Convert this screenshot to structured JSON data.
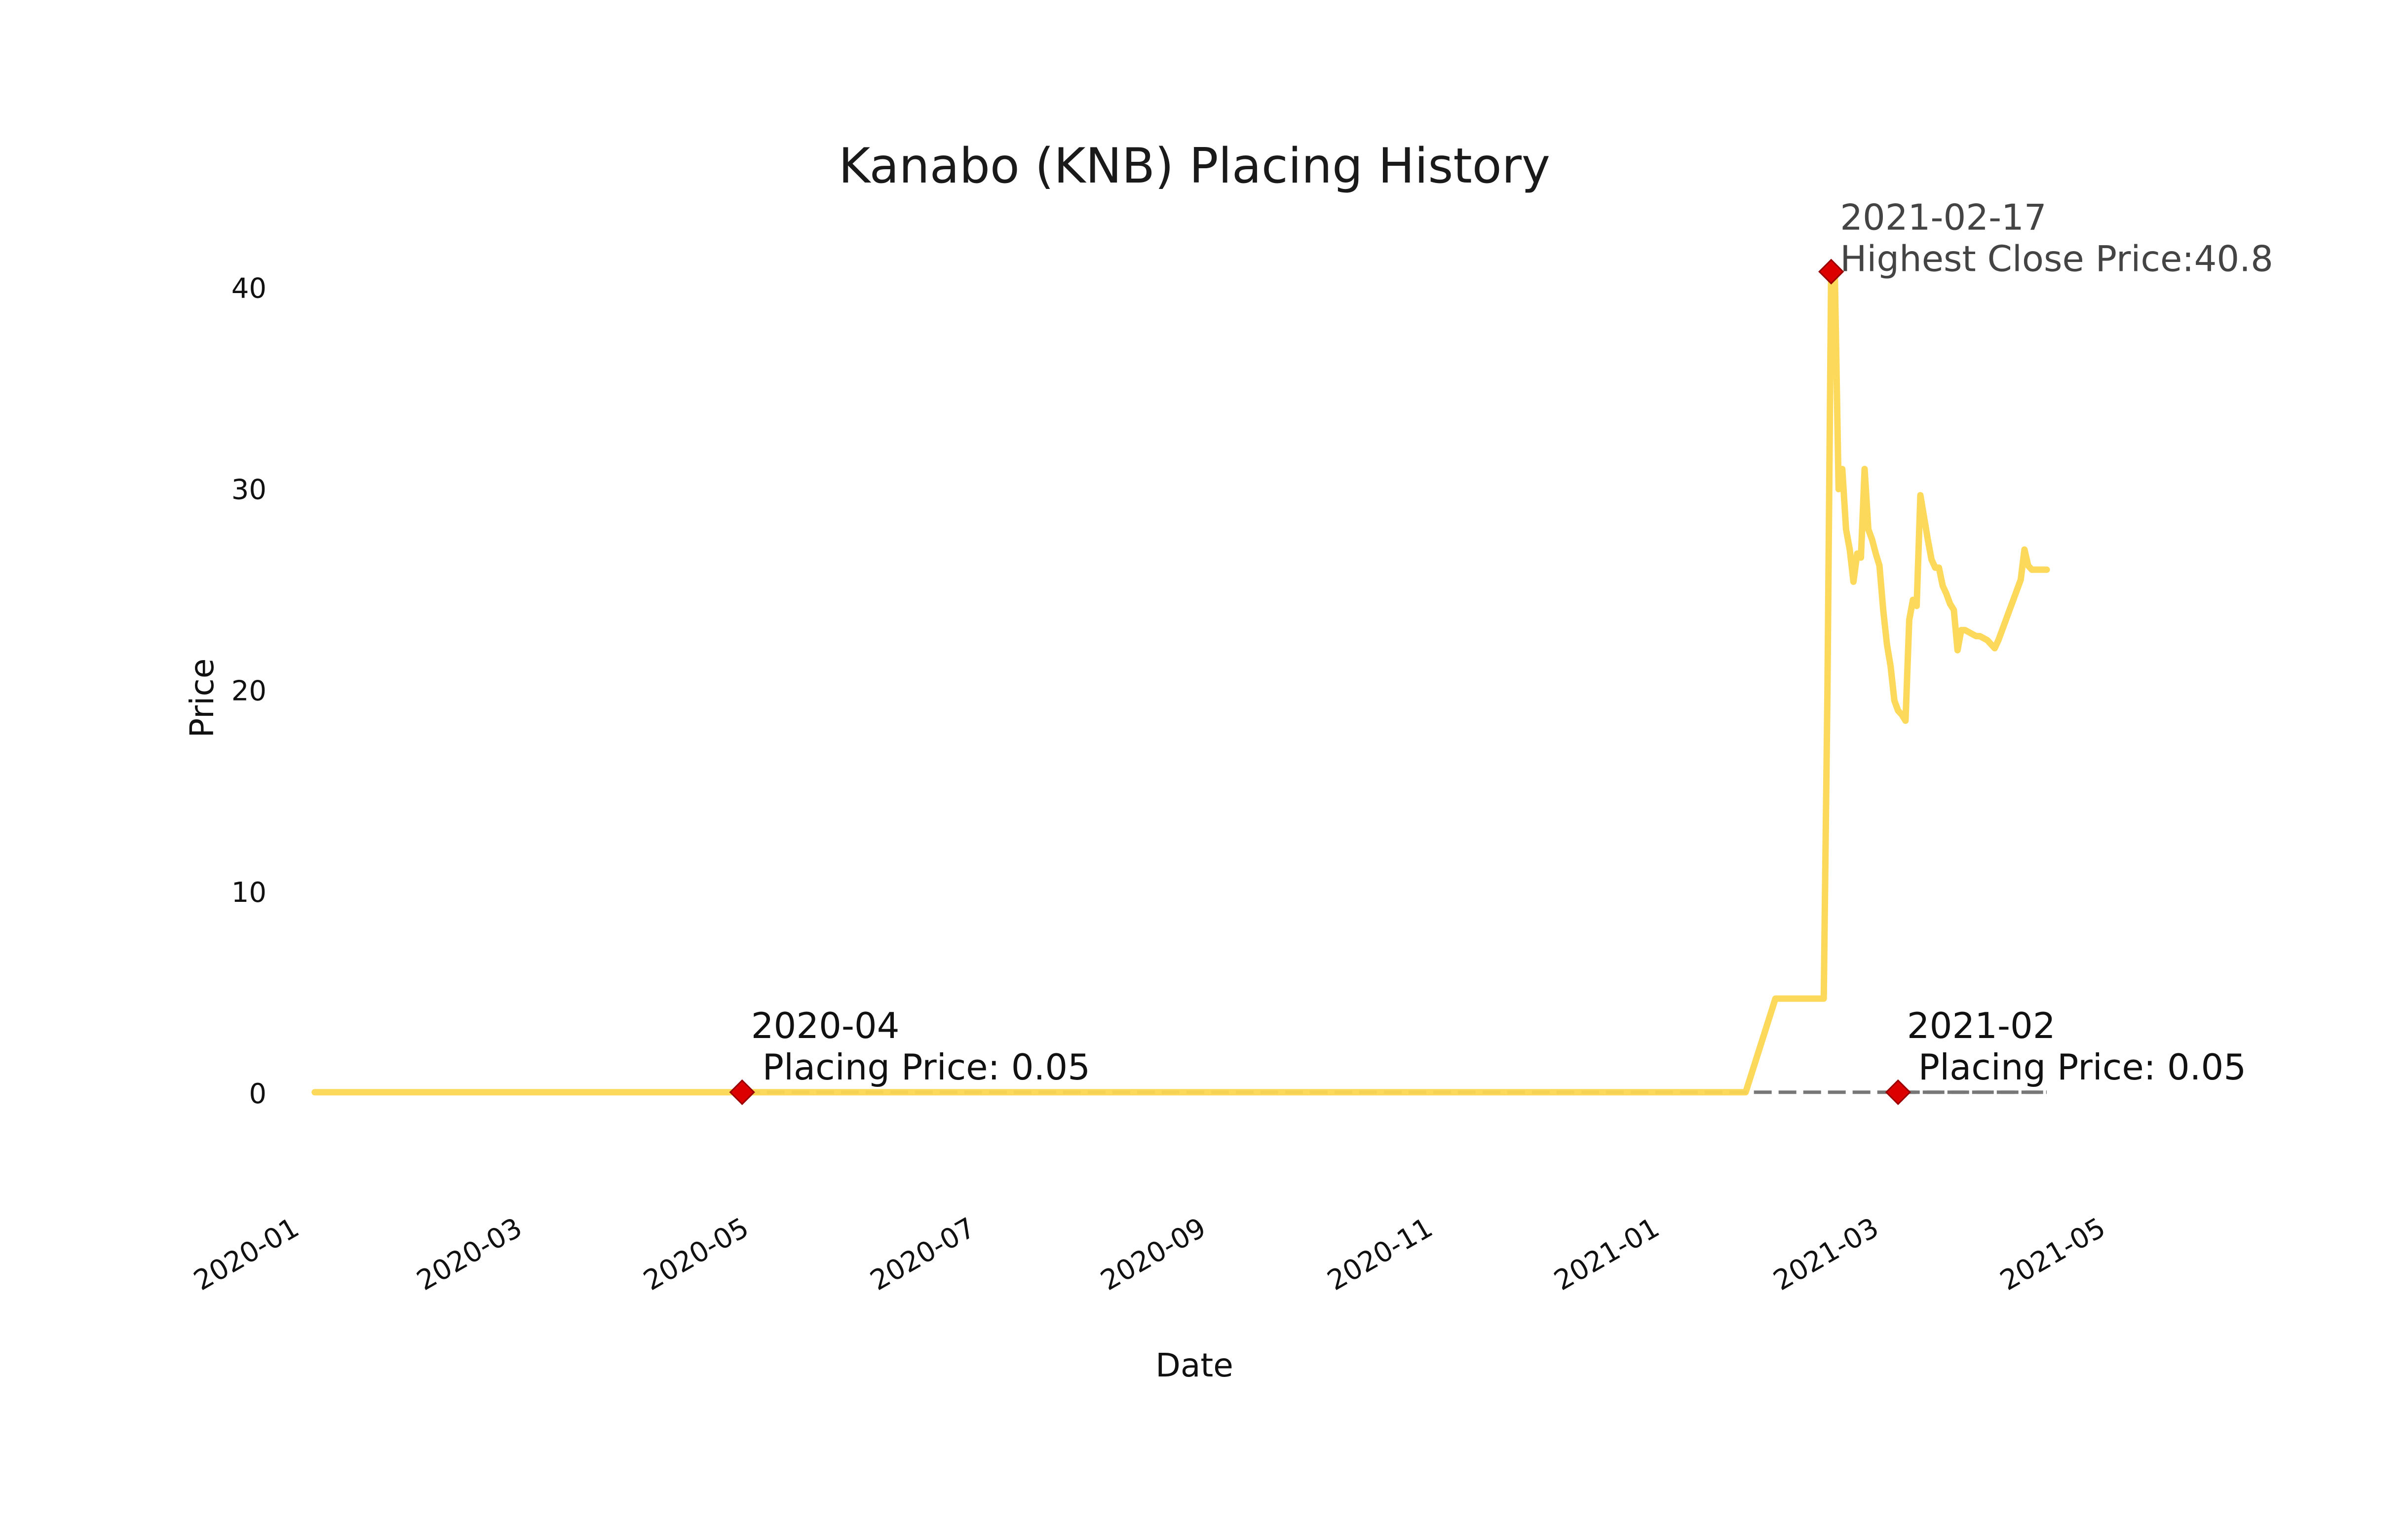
{
  "chart_data": {
    "type": "line",
    "title": "Kanabo (KNB) Placing History",
    "xlabel": "Date",
    "ylabel": "Price",
    "xlim": [
      "2020-01-01",
      "2021-05-01"
    ],
    "ylim": [
      -5,
      44
    ],
    "x_ticks": [
      "2020-01",
      "2020-03",
      "2020-05",
      "2020-07",
      "2020-09",
      "2020-11",
      "2021-01",
      "2021-03",
      "2021-05"
    ],
    "y_ticks": [
      0,
      10,
      20,
      30,
      40
    ],
    "grid": false,
    "colors": {
      "price_line": "#FCD751",
      "placing_line": "#777777",
      "marker": "#DD0000"
    },
    "series": [
      {
        "x": [
          "2020-01-06",
          "2020-02-15",
          "2020-04-01",
          "2020-06-01",
          "2020-08-01",
          "2020-10-01",
          "2020-12-01",
          "2021-01-25",
          "2021-02-02",
          "2021-02-08",
          "2021-02-12",
          "2021-02-15",
          "2021-02-16",
          "2021-02-17",
          "2021-02-18",
          "2021-02-19",
          "2021-02-20",
          "2021-02-21",
          "2021-02-22",
          "2021-02-23",
          "2021-02-24",
          "2021-02-25",
          "2021-02-26",
          "2021-02-27",
          "2021-02-28",
          "2021-03-01",
          "2021-03-02",
          "2021-03-03",
          "2021-03-04",
          "2021-03-05",
          "2021-03-06",
          "2021-03-07",
          "2021-03-08",
          "2021-03-09",
          "2021-03-10",
          "2021-03-11",
          "2021-03-12",
          "2021-03-13",
          "2021-03-14",
          "2021-03-15",
          "2021-03-16",
          "2021-03-17",
          "2021-03-18",
          "2021-03-19",
          "2021-03-20",
          "2021-03-21",
          "2021-03-22",
          "2021-03-23",
          "2021-03-24",
          "2021-03-25",
          "2021-03-26",
          "2021-03-27",
          "2021-03-28",
          "2021-03-29",
          "2021-03-30",
          "2021-03-31",
          "2021-04-01",
          "2021-04-02",
          "2021-04-03",
          "2021-04-04",
          "2021-04-05",
          "2021-04-06",
          "2021-04-07",
          "2021-04-08",
          "2021-04-09",
          "2021-04-10",
          "2021-04-11",
          "2021-04-12",
          "2021-04-13",
          "2021-04-14",
          "2021-04-15",
          "2021-04-16"
        ],
        "y": [
          0.05,
          0.05,
          0.05,
          0.05,
          0.05,
          0.05,
          0.05,
          0.05,
          4.7,
          4.7,
          4.7,
          4.7,
          20,
          40.8,
          40.5,
          30,
          31,
          28,
          27,
          25.4,
          26.8,
          26.6,
          31,
          28,
          27.5,
          26.8,
          26.2,
          24,
          22.3,
          21.2,
          19.5,
          19,
          18.8,
          18.5,
          23.5,
          24.5,
          24.2,
          29.7,
          28.6,
          27.5,
          26.5,
          26.1,
          26.1,
          25.2,
          24.8,
          24.3,
          24,
          22,
          23,
          23,
          22.9,
          22.8,
          22.7,
          22.7,
          22.6,
          22.5,
          22.3,
          22.1,
          22.5,
          23,
          23.5,
          24,
          24.5,
          25,
          25.5,
          27,
          26.2,
          26,
          26,
          26,
          26,
          26
        ],
        "color": "#FCD751"
      }
    ],
    "placing_lines": [
      {
        "x_start": "2020-04-30",
        "x_end": "2021-04-16",
        "y": 0.05
      },
      {
        "x_start": "2021-03-07",
        "x_end": "2021-04-16",
        "y": 0.05
      }
    ],
    "annotations": [
      {
        "x": "2020-04-30",
        "y": 0.05,
        "lines": [
          "2020-04",
          " Placing Price: 0.05"
        ]
      },
      {
        "x": "2021-03-07",
        "y": 0.05,
        "lines": [
          "2021-02",
          " Placing Price: 0.05"
        ]
      },
      {
        "x": "2021-02-17",
        "y": 40.8,
        "lines": [
          "2021-02-17",
          "Highest Close Price:40.8"
        ]
      }
    ]
  }
}
